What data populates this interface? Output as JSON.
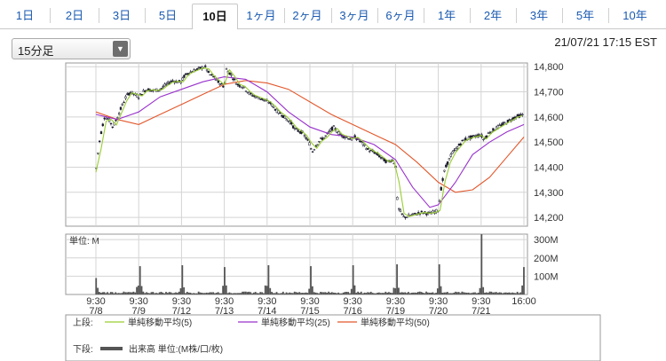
{
  "tabs": [
    {
      "label": "1日",
      "active": false
    },
    {
      "label": "2日",
      "active": false
    },
    {
      "label": "3日",
      "active": false
    },
    {
      "label": "5日",
      "active": false
    },
    {
      "label": "10日",
      "active": true
    },
    {
      "label": "1ヶ月",
      "active": false
    },
    {
      "label": "2ヶ月",
      "active": false
    },
    {
      "label": "3ヶ月",
      "active": false
    },
    {
      "label": "6ヶ月",
      "active": false
    },
    {
      "label": "1年",
      "active": false
    },
    {
      "label": "2年",
      "active": false
    },
    {
      "label": "3年",
      "active": false
    },
    {
      "label": "5年",
      "active": false
    },
    {
      "label": "10年",
      "active": false
    }
  ],
  "interval_select": {
    "value": "15分足"
  },
  "timestamp": "21/07/21 17:15 EST",
  "legend": {
    "upper_label": "上段:",
    "lower_label": "下段:",
    "volume_label": "出来高 単位:(M株/口/枚)"
  },
  "chart_data": [
    {
      "type": "candlestick",
      "x_ticks": [
        {
          "time": "9:30",
          "date": "7/8"
        },
        {
          "time": "9:30",
          "date": "7/9"
        },
        {
          "time": "9:30",
          "date": "7/12"
        },
        {
          "time": "9:30",
          "date": "7/13"
        },
        {
          "time": "9:30",
          "date": "7/14"
        },
        {
          "time": "9:30",
          "date": "7/15"
        },
        {
          "time": "9:30",
          "date": "7/16"
        },
        {
          "time": "9:30",
          "date": "7/19"
        },
        {
          "time": "9:30",
          "date": "7/20"
        },
        {
          "time": "9:30",
          "date": "7/21"
        },
        {
          "time": "16:00",
          "date": ""
        }
      ],
      "y_ticks": [
        "14,800",
        "14,700",
        "14,600",
        "14,500",
        "14,400",
        "14,300",
        "14,200"
      ],
      "ylim": [
        14165,
        14815
      ],
      "grid": true,
      "price_path": [
        [
          0,
          14380
        ],
        [
          0.05,
          14460
        ],
        [
          0.1,
          14520
        ],
        [
          0.15,
          14560
        ],
        [
          0.2,
          14600
        ],
        [
          0.3,
          14590
        ],
        [
          0.4,
          14560
        ],
        [
          0.5,
          14600
        ],
        [
          0.6,
          14640
        ],
        [
          0.7,
          14680
        ],
        [
          0.8,
          14700
        ],
        [
          0.9,
          14690
        ],
        [
          1.0,
          14680
        ],
        [
          1.1,
          14700
        ],
        [
          1.2,
          14710
        ],
        [
          1.35,
          14705
        ],
        [
          1.5,
          14710
        ],
        [
          1.65,
          14730
        ],
        [
          1.8,
          14745
        ],
        [
          1.9,
          14740
        ],
        [
          2.0,
          14740
        ],
        [
          2.05,
          14760
        ],
        [
          2.15,
          14775
        ],
        [
          2.3,
          14785
        ],
        [
          2.45,
          14795
        ],
        [
          2.55,
          14800
        ],
        [
          2.65,
          14770
        ],
        [
          2.75,
          14760
        ],
        [
          2.85,
          14740
        ],
        [
          3.0,
          14720
        ],
        [
          3.05,
          14790
        ],
        [
          3.15,
          14770
        ],
        [
          3.3,
          14730
        ],
        [
          3.45,
          14720
        ],
        [
          3.6,
          14690
        ],
        [
          3.75,
          14680
        ],
        [
          3.9,
          14670
        ],
        [
          4.0,
          14660
        ],
        [
          4.05,
          14660
        ],
        [
          4.15,
          14640
        ],
        [
          4.25,
          14620
        ],
        [
          4.35,
          14610
        ],
        [
          4.45,
          14590
        ],
        [
          4.55,
          14580
        ],
        [
          4.65,
          14550
        ],
        [
          4.8,
          14540
        ],
        [
          4.9,
          14520
        ],
        [
          5.0,
          14490
        ],
        [
          5.05,
          14460
        ],
        [
          5.15,
          14490
        ],
        [
          5.25,
          14510
        ],
        [
          5.35,
          14520
        ],
        [
          5.45,
          14540
        ],
        [
          5.55,
          14560
        ],
        [
          5.7,
          14530
        ],
        [
          5.85,
          14520
        ],
        [
          6.0,
          14510
        ],
        [
          6.05,
          14520
        ],
        [
          6.2,
          14500
        ],
        [
          6.35,
          14470
        ],
        [
          6.5,
          14460
        ],
        [
          6.65,
          14440
        ],
        [
          6.8,
          14420
        ],
        [
          6.92,
          14430
        ],
        [
          7.0,
          14410
        ],
        [
          7.05,
          14240
        ],
        [
          7.2,
          14200
        ],
        [
          7.4,
          14210
        ],
        [
          7.6,
          14220
        ],
        [
          7.8,
          14215
        ],
        [
          7.95,
          14225
        ],
        [
          8.0,
          14230
        ],
        [
          8.05,
          14300
        ],
        [
          8.15,
          14390
        ],
        [
          8.3,
          14450
        ],
        [
          8.45,
          14480
        ],
        [
          8.6,
          14510
        ],
        [
          8.8,
          14520
        ],
        [
          9.0,
          14530
        ],
        [
          9.05,
          14510
        ],
        [
          9.2,
          14540
        ],
        [
          9.4,
          14560
        ],
        [
          9.6,
          14580
        ],
        [
          9.8,
          14600
        ],
        [
          10.0,
          14610
        ]
      ],
      "sma_note": "moving averages drawn as smoothed lines",
      "series": [
        {
          "name": "単純移動平均(5)",
          "color": "#9acd32"
        },
        {
          "name": "単純移動平均(25)",
          "color": "#9932cc"
        },
        {
          "name": "単純移動平均(50)",
          "color": "#e2572b"
        }
      ],
      "ma25": [
        [
          0,
          14610
        ],
        [
          0.5,
          14590
        ],
        [
          1,
          14620
        ],
        [
          1.5,
          14680
        ],
        [
          2,
          14710
        ],
        [
          2.5,
          14740
        ],
        [
          3,
          14760
        ],
        [
          3.5,
          14750
        ],
        [
          4,
          14700
        ],
        [
          4.5,
          14620
        ],
        [
          5,
          14560
        ],
        [
          5.5,
          14530
        ],
        [
          6,
          14520
        ],
        [
          6.5,
          14490
        ],
        [
          7,
          14430
        ],
        [
          7.4,
          14320
        ],
        [
          7.8,
          14240
        ],
        [
          8,
          14250
        ],
        [
          8.4,
          14340
        ],
        [
          8.8,
          14450
        ],
        [
          9.2,
          14500
        ],
        [
          9.6,
          14540
        ],
        [
          10,
          14570
        ]
      ],
      "ma50": [
        [
          0,
          14620
        ],
        [
          0.5,
          14590
        ],
        [
          1,
          14570
        ],
        [
          1.5,
          14610
        ],
        [
          2,
          14650
        ],
        [
          2.5,
          14690
        ],
        [
          3,
          14730
        ],
        [
          3.5,
          14745
        ],
        [
          4,
          14735
        ],
        [
          4.5,
          14710
        ],
        [
          5,
          14660
        ],
        [
          5.5,
          14610
        ],
        [
          6,
          14570
        ],
        [
          6.5,
          14530
        ],
        [
          7,
          14490
        ],
        [
          7.5,
          14420
        ],
        [
          8,
          14340
        ],
        [
          8.4,
          14300
        ],
        [
          8.8,
          14310
        ],
        [
          9.2,
          14360
        ],
        [
          9.6,
          14440
        ],
        [
          10,
          14520
        ]
      ]
    },
    {
      "type": "bar",
      "unit_label": "単位: M",
      "y_ticks": [
        "300M",
        "200M",
        "100M"
      ],
      "ylim": [
        0,
        330
      ],
      "session_open_spikes": [
        {
          "day": "7/8",
          "value": 90
        },
        {
          "day": "7/9",
          "value": 155
        },
        {
          "day": "7/12",
          "value": 160
        },
        {
          "day": "7/13",
          "value": 150
        },
        {
          "day": "7/14",
          "value": 160
        },
        {
          "day": "7/15",
          "value": 155
        },
        {
          "day": "7/16",
          "value": 160
        },
        {
          "day": "7/19",
          "value": 165
        },
        {
          "day": "7/20",
          "value": 165
        },
        {
          "day": "7/21",
          "value": 330
        },
        {
          "day": "7/21 close",
          "value": 150
        }
      ]
    }
  ]
}
